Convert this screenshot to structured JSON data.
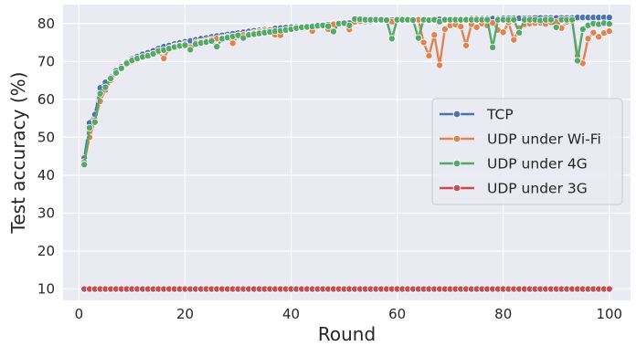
{
  "chart_data": {
    "type": "line",
    "xlabel": "Round",
    "ylabel": "Test accuracy (%)",
    "xlim": [
      -3,
      104
    ],
    "ylim": [
      7,
      85
    ],
    "xticks": [
      0,
      20,
      40,
      60,
      80,
      100
    ],
    "yticks": [
      10,
      20,
      30,
      40,
      50,
      60,
      70,
      80
    ],
    "grid": true,
    "legend_position": "center-right",
    "x": [
      1,
      2,
      3,
      4,
      5,
      6,
      7,
      8,
      9,
      10,
      11,
      12,
      13,
      14,
      15,
      16,
      17,
      18,
      19,
      20,
      21,
      22,
      23,
      24,
      25,
      26,
      27,
      28,
      29,
      30,
      31,
      32,
      33,
      34,
      35,
      36,
      37,
      38,
      39,
      40,
      41,
      42,
      43,
      44,
      45,
      46,
      47,
      48,
      49,
      50,
      51,
      52,
      53,
      54,
      55,
      56,
      57,
      58,
      59,
      60,
      61,
      62,
      63,
      64,
      65,
      66,
      67,
      68,
      69,
      70,
      71,
      72,
      73,
      74,
      75,
      76,
      77,
      78,
      79,
      80,
      81,
      82,
      83,
      84,
      85,
      86,
      87,
      88,
      89,
      90,
      91,
      92,
      93,
      94,
      95,
      96,
      97,
      98,
      99,
      100
    ],
    "series": [
      {
        "name": "TCP",
        "color": "#4c72b0",
        "values": [
          44.5,
          53.8,
          56,
          63,
          64.5,
          65.8,
          67.5,
          68.6,
          69.8,
          70.7,
          71.3,
          71.9,
          72.3,
          72.8,
          73.4,
          73.9,
          74.2,
          74.6,
          74.9,
          75.2,
          75.4,
          75.7,
          76,
          76.2,
          76.5,
          76.7,
          76.9,
          77.1,
          77.3,
          77.5,
          77.7,
          77.9,
          78.1,
          78.2,
          78.4,
          78.5,
          78.7,
          78.8,
          78.9,
          79,
          79.1,
          79.2,
          79.3,
          79.4,
          79.5,
          79.6,
          79.7,
          79.8,
          79.9,
          80,
          80.1,
          80.3,
          80.4,
          80.5,
          80.6,
          80.7,
          80.8,
          80.8,
          80.9,
          80.9,
          81,
          81,
          81,
          81,
          81.1,
          81.1,
          81.1,
          81.1,
          81.2,
          81.2,
          81.2,
          81.2,
          81.2,
          81.3,
          81.3,
          81.3,
          81.3,
          81.3,
          81.3,
          81.4,
          81.4,
          81.4,
          81.4,
          81.4,
          81.4,
          81.5,
          81.5,
          81.5,
          81.5,
          81.5,
          81.5,
          81.5,
          81.5,
          81.6,
          81.6,
          81.6,
          81.6,
          81.6,
          81.6,
          81.6
        ]
      },
      {
        "name": "UDP under Wi-Fi",
        "color": "#dd8452",
        "values": [
          43.5,
          50,
          54.5,
          59.5,
          62.5,
          65,
          66.8,
          68,
          69.2,
          70,
          70.5,
          71,
          71.6,
          72,
          72.5,
          70.8,
          73.5,
          74,
          74.2,
          74.6,
          73.8,
          75,
          75.2,
          75.5,
          75.8,
          76,
          76.2,
          76.5,
          74.8,
          76.8,
          77,
          77.2,
          77.5,
          77.8,
          78,
          78.3,
          77,
          76.9,
          78.2,
          78.5,
          78.8,
          79,
          79.2,
          78,
          79.4,
          79.6,
          78.5,
          79.8,
          80,
          80.2,
          78.4,
          80.4,
          80.6,
          80.8,
          80.9,
          80.9,
          81,
          81,
          80.5,
          81,
          81,
          81,
          80.8,
          81,
          75,
          71.5,
          77,
          69,
          78.5,
          79.5,
          79.7,
          79.2,
          74.2,
          79.8,
          79,
          80,
          79.5,
          80.2,
          78.3,
          77.7,
          80.3,
          75.7,
          78.8,
          79.8,
          80,
          80.1,
          80.2,
          79.9,
          80.3,
          80.4,
          78.8,
          80.5,
          80.6,
          71.5,
          69.5,
          76,
          77.6,
          76.5,
          77.5,
          78
        ]
      },
      {
        "name": "UDP under 4G",
        "color": "#55a868",
        "values": [
          42.8,
          52.5,
          54,
          61.5,
          63.2,
          65.5,
          67,
          68.2,
          69.5,
          70.3,
          70.8,
          71.2,
          71.5,
          72,
          72.8,
          73,
          73.4,
          73.8,
          74.1,
          74.3,
          73.1,
          74.6,
          74.9,
          75.1,
          75.4,
          73.9,
          76,
          76.3,
          76.6,
          76.9,
          76.2,
          77,
          77.2,
          77.4,
          77.6,
          77.8,
          78,
          78.1,
          78.3,
          78.5,
          78.8,
          79,
          79.1,
          79.2,
          79.4,
          79.5,
          79.3,
          77.9,
          80,
          80.1,
          79.5,
          81.2,
          81.1,
          81,
          81,
          81,
          81,
          80.9,
          76,
          81,
          81,
          81,
          80.9,
          76.2,
          81,
          80.9,
          81,
          80.5,
          81,
          81,
          81,
          81,
          81,
          81,
          81,
          81,
          81,
          73.7,
          81,
          81,
          81,
          81,
          77.6,
          81,
          81,
          81,
          80.8,
          81,
          81,
          79,
          81,
          81,
          81,
          70.2,
          78.5,
          79.5,
          80,
          79.8,
          80.1,
          79.9
        ]
      },
      {
        "name": "UDP under 3G",
        "color": "#c44e52",
        "values": [
          10,
          10,
          10,
          10,
          10,
          10,
          10,
          10,
          10,
          10,
          10,
          10,
          10,
          10,
          10,
          10,
          10,
          10,
          10,
          10,
          10,
          10,
          10,
          10,
          10,
          10,
          10,
          10,
          10,
          10,
          10,
          10,
          10,
          10,
          10,
          10,
          10,
          10,
          10,
          10,
          10,
          10,
          10,
          10,
          10,
          10,
          10,
          10,
          10,
          10,
          10,
          10,
          10,
          10,
          10,
          10,
          10,
          10,
          10,
          10,
          10,
          10,
          10,
          10,
          10,
          10,
          10,
          10,
          10,
          10,
          10,
          10,
          10,
          10,
          10,
          10,
          10,
          10,
          10,
          10,
          10,
          10,
          10,
          10,
          10,
          10,
          10,
          10,
          10,
          10,
          10,
          10,
          10,
          10,
          10,
          10,
          10,
          10,
          10,
          10
        ]
      }
    ]
  }
}
